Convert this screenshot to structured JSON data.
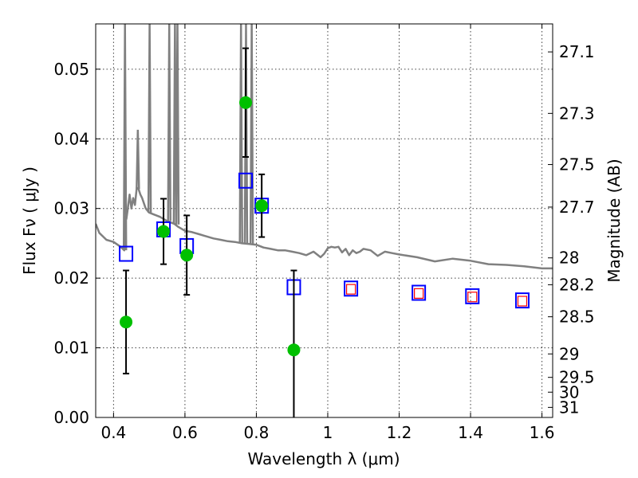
{
  "chart_data": {
    "type": "scatter",
    "title": "",
    "xlabel": "Wavelength  λ (μm)",
    "ylabel": "Flux  Fν  ( μJy )",
    "ylabel_right": "Magnitude (AB)",
    "xlim": [
      0.35,
      1.63
    ],
    "ylim": [
      0.0,
      0.0565
    ],
    "grid": true,
    "x_ticks": [
      0.4,
      0.6,
      0.8,
      1.0,
      1.2,
      1.4,
      1.6
    ],
    "x_tick_labels": [
      "0.4",
      "0.6",
      "0.8",
      "1",
      "1.2",
      "1.4",
      "1.6"
    ],
    "y_ticks": [
      0.0,
      0.01,
      0.02,
      0.03,
      0.04,
      0.05
    ],
    "y_tick_labels": [
      "0.00",
      "0.01",
      "0.02",
      "0.03",
      "0.04",
      "0.05"
    ],
    "mag_ticks": [
      27.1,
      27.3,
      27.5,
      27.7,
      28,
      28.2,
      28.5,
      29,
      29.5,
      30,
      31
    ],
    "mag_tick_labels": [
      "27.1",
      "27.3",
      "27.5",
      "27.7",
      "28",
      "28.2",
      "28.5",
      "29",
      "29.5",
      "30",
      "31"
    ],
    "colors": {
      "template": "#808080",
      "model": "#0000ff",
      "observed": "#00c000",
      "errorbar": "#000000",
      "predicted": "#ff0000"
    },
    "series": [
      {
        "name": "SED template",
        "kind": "line",
        "x": [
          0.35,
          0.36,
          0.38,
          0.4,
          0.42,
          0.43,
          0.434,
          0.436,
          0.44,
          0.445,
          0.45,
          0.455,
          0.46,
          0.465,
          0.47,
          0.475,
          0.48,
          0.49,
          0.5,
          0.51,
          0.52,
          0.53,
          0.54,
          0.55,
          0.56,
          0.57,
          0.58,
          0.6,
          0.62,
          0.64,
          0.66,
          0.68,
          0.7,
          0.72,
          0.74,
          0.76,
          0.78,
          0.8,
          0.82,
          0.84,
          0.86,
          0.88,
          0.9,
          0.92,
          0.94,
          0.96,
          0.98,
          0.99,
          1.0,
          1.01,
          1.02,
          1.03,
          1.04,
          1.05,
          1.06,
          1.07,
          1.08,
          1.09,
          1.1,
          1.12,
          1.14,
          1.16,
          1.18,
          1.2,
          1.25,
          1.3,
          1.35,
          1.4,
          1.45,
          1.5,
          1.55,
          1.6,
          1.63
        ],
        "y": [
          0.0278,
          0.0265,
          0.0255,
          0.0252,
          0.0245,
          0.024,
          0.0288,
          0.0285,
          0.03,
          0.032,
          0.03,
          0.0315,
          0.0305,
          0.033,
          0.0328,
          0.032,
          0.0315,
          0.03,
          0.0294,
          0.0292,
          0.029,
          0.0288,
          0.0285,
          0.0282,
          0.028,
          0.0278,
          0.0274,
          0.0268,
          0.0266,
          0.0263,
          0.026,
          0.0257,
          0.0255,
          0.0253,
          0.0252,
          0.025,
          0.0249,
          0.0248,
          0.0244,
          0.0242,
          0.024,
          0.024,
          0.0238,
          0.0236,
          0.0233,
          0.0238,
          0.023,
          0.0235,
          0.0243,
          0.0245,
          0.0244,
          0.0245,
          0.0237,
          0.0242,
          0.0233,
          0.024,
          0.0236,
          0.0238,
          0.0242,
          0.024,
          0.0232,
          0.0238,
          0.0236,
          0.0234,
          0.023,
          0.0224,
          0.0228,
          0.0225,
          0.022,
          0.0219,
          0.0217,
          0.0214,
          0.0214
        ]
      },
      {
        "name": "SED emission lines",
        "kind": "spikes",
        "lines": [
          {
            "x": 0.432,
            "y0": 0.024,
            "y1": 0.0565
          },
          {
            "x": 0.468,
            "y0": 0.0328,
            "y1": 0.0413
          },
          {
            "x": 0.501,
            "y0": 0.0294,
            "y1": 0.0565
          },
          {
            "x": 0.556,
            "y0": 0.0282,
            "y1": 0.0565
          },
          {
            "x": 0.572,
            "y0": 0.0278,
            "y1": 0.0565
          },
          {
            "x": 0.579,
            "y0": 0.0277,
            "y1": 0.0565
          },
          {
            "x": 0.757,
            "y0": 0.025,
            "y1": 0.0565
          },
          {
            "x": 0.771,
            "y0": 0.025,
            "y1": 0.0565
          },
          {
            "x": 0.787,
            "y0": 0.0249,
            "y1": 0.0565
          }
        ]
      },
      {
        "name": "Model photometry",
        "kind": "open-square",
        "x": [
          0.435,
          0.54,
          0.605,
          0.77,
          0.815,
          0.905,
          1.065,
          1.255,
          1.405,
          1.545
        ],
        "y": [
          0.0235,
          0.027,
          0.0246,
          0.034,
          0.0304,
          0.0187,
          0.0185,
          0.0179,
          0.0174,
          0.0168
        ]
      },
      {
        "name": "Predicted photometry",
        "kind": "small-open-square",
        "x": [
          1.065,
          1.255,
          1.405,
          1.545
        ],
        "y": [
          0.0184,
          0.0178,
          0.0173,
          0.0167
        ]
      },
      {
        "name": "Observed photometry",
        "kind": "filled-circle",
        "x": [
          0.435,
          0.54,
          0.605,
          0.77,
          0.815,
          0.905
        ],
        "y": [
          0.0137,
          0.0267,
          0.0233,
          0.0452,
          0.0304,
          0.0097
        ],
        "err": [
          0.0074,
          0.0047,
          0.0057,
          0.0078,
          0.0045,
          0.0114
        ]
      }
    ]
  }
}
